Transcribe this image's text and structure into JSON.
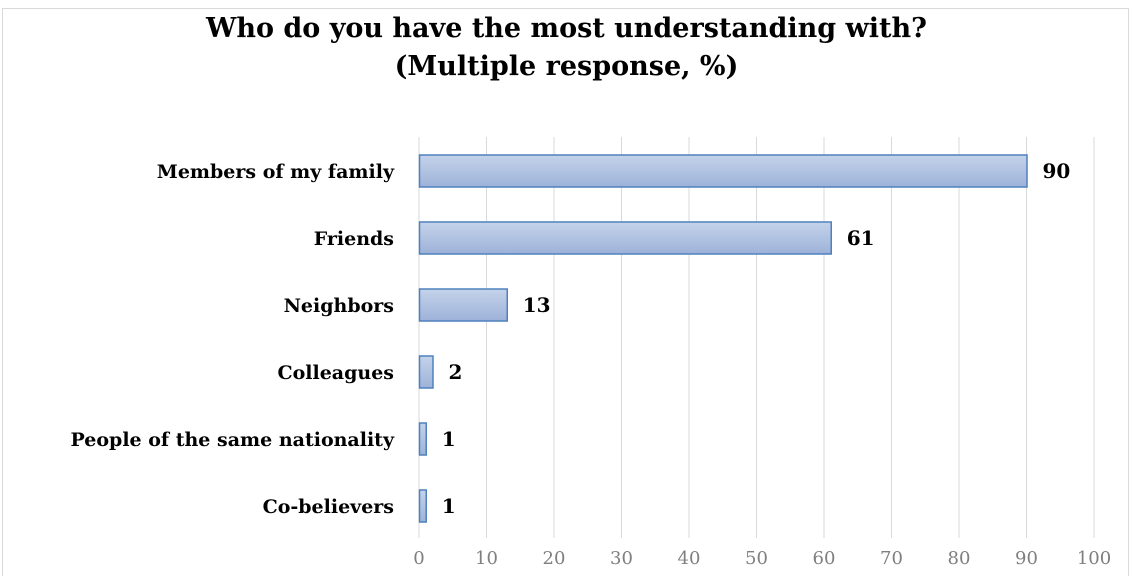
{
  "chart_data": {
    "type": "bar",
    "orientation": "horizontal",
    "title_lines": [
      "Who do you have the most understanding with?",
      "(Multiple response, %)"
    ],
    "categories": [
      "Members of my family",
      "Friends",
      "Neighbors",
      "Colleagues",
      "People of the same nationality",
      "Co-believers"
    ],
    "values": [
      90,
      61,
      13,
      2,
      1,
      1
    ],
    "xlim": [
      0,
      100
    ],
    "xticks": [
      0,
      10,
      20,
      30,
      40,
      50,
      60,
      70,
      80,
      90,
      100
    ],
    "grid": true,
    "legend": "none",
    "colors": {
      "bar_fill_top": "#c5d3ea",
      "bar_fill_bottom": "#9db2d9",
      "bar_stroke": "#4f81bd",
      "grid": "#d9d9d9",
      "tick_text": "#7f7f7f"
    }
  }
}
